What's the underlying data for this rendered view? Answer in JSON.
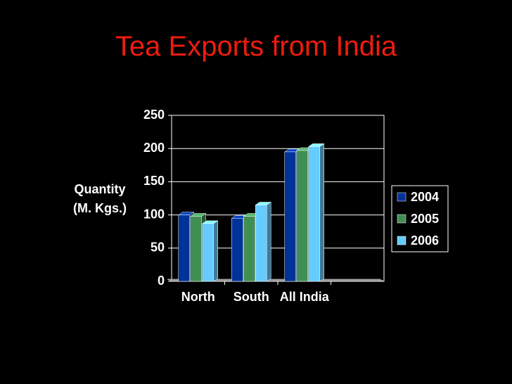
{
  "chart_data": {
    "type": "bar",
    "title": "Tea Exports from India",
    "ylabel": [
      "Quantity",
      "(M. Kgs.)"
    ],
    "categories": [
      "North",
      "South",
      "All India",
      null
    ],
    "series": [
      {
        "name": "2004",
        "color": "#003399",
        "values": [
          100,
          95,
          195,
          null
        ]
      },
      {
        "name": "2005",
        "color": "#3f8f55",
        "values": [
          98,
          98,
          197,
          null
        ]
      },
      {
        "name": "2006",
        "color": "#66ccff",
        "values": [
          87,
          115,
          203,
          null
        ]
      }
    ],
    "ylim": [
      0,
      250
    ],
    "yticks": [
      0,
      50,
      100,
      150,
      200,
      250
    ],
    "grid": true,
    "legend": "right"
  }
}
